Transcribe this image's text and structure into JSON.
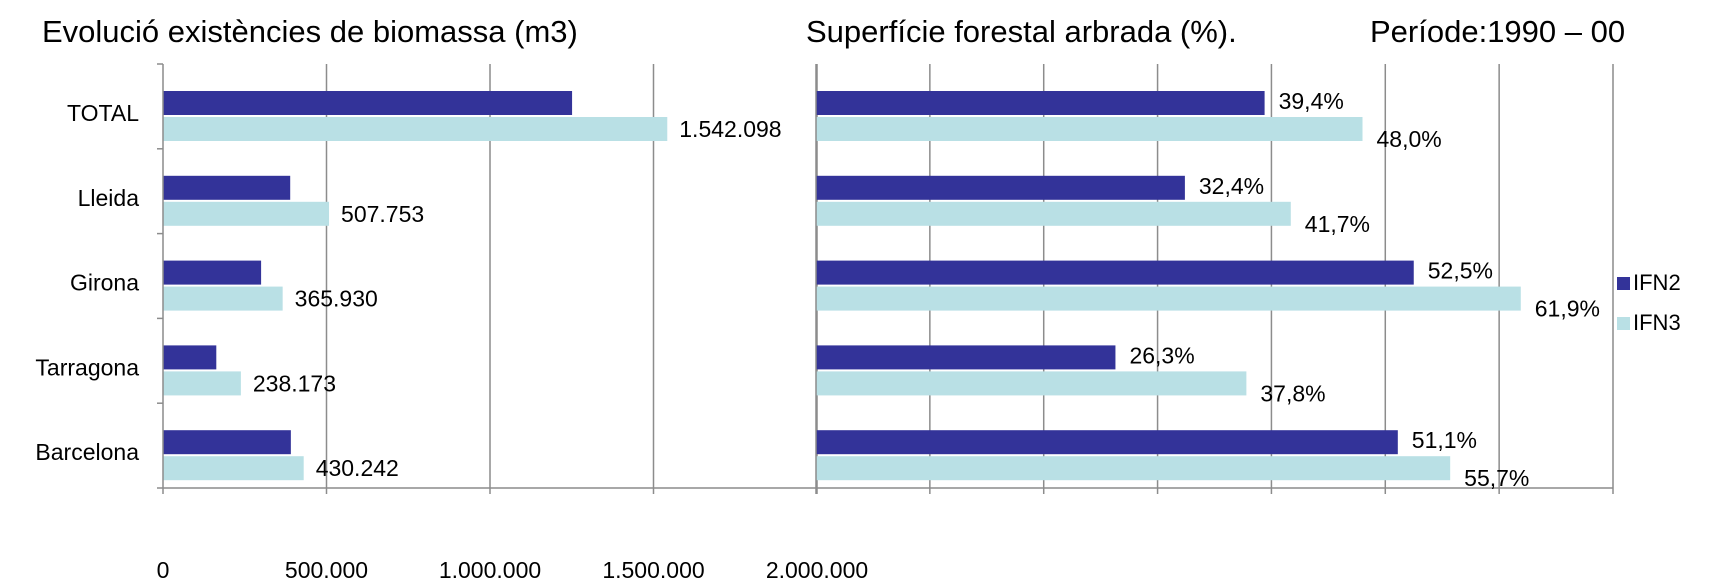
{
  "titles": {
    "left": "Evolució existències de biomassa (m3)",
    "right": "Superfície forestal arbrada (%).",
    "period": "Període:1990 – 00"
  },
  "legend": [
    {
      "label": "IFN2",
      "color": "#333399"
    },
    {
      "label": "IFN3",
      "color": "#b9e0e5"
    }
  ],
  "chart_data": [
    {
      "type": "bar",
      "orientation": "horizontal",
      "title": "Evolució existències de biomassa (m3)",
      "categories": [
        "TOTAL",
        "Lleida",
        "Girona",
        "Tarragona",
        "Barcelona"
      ],
      "series": [
        {
          "name": "IFN2",
          "values": [
            1251000,
            389000,
            300000,
            163000,
            391000
          ],
          "color": "#333399"
        },
        {
          "name": "IFN3",
          "values": [
            1542098,
            507753,
            365930,
            238173,
            430242
          ],
          "color": "#b9e0e5"
        }
      ],
      "data_labels": {
        "IFN3": [
          "1.542.098",
          "507.753",
          "365.930",
          "238.173",
          "430.242"
        ]
      },
      "xlim": [
        0,
        2000000
      ],
      "xticks": [
        0,
        500000,
        1000000,
        1500000,
        2000000
      ],
      "xtick_labels": [
        "0",
        "500.000",
        "1.000.000",
        "1.500.000",
        "2.000.000"
      ],
      "grid": true
    },
    {
      "type": "bar",
      "orientation": "horizontal",
      "title": "Superfície forestal arbrada (%).",
      "categories": [
        "TOTAL",
        "Lleida",
        "Girona",
        "Tarragona",
        "Barcelona"
      ],
      "series": [
        {
          "name": "IFN2",
          "values": [
            39.4,
            32.4,
            52.5,
            26.3,
            51.1
          ],
          "color": "#333399"
        },
        {
          "name": "IFN3",
          "values": [
            48.0,
            41.7,
            61.9,
            37.8,
            55.7
          ],
          "color": "#b9e0e5"
        }
      ],
      "data_labels": {
        "IFN2": [
          "39,4%",
          "32,4%",
          "52,5%",
          "26,3%",
          "51,1%"
        ],
        "IFN3": [
          "48,0%",
          "41,7%",
          "61,9%",
          "37,8%",
          "55,7%"
        ]
      },
      "xlim": [
        0,
        70
      ],
      "grid": true,
      "legend": "right"
    }
  ]
}
